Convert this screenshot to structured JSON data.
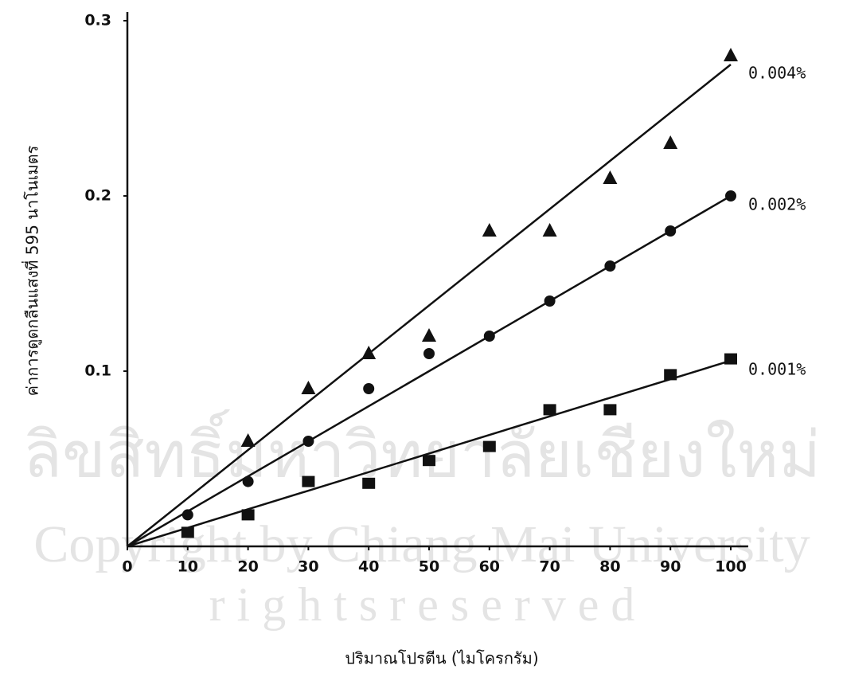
{
  "chart_data": {
    "type": "scatter",
    "x_label": "ปริมาณโปรตีน (ไมโครกรัม)",
    "y_label": "ค่าการดูดกลืนแสงที่ 595 นาโนเมตร",
    "watermark": [
      "ลิขสิทธิ์มหาวิทยาลัยเชียงใหม่",
      "Copyright by Chiang Mai University",
      "r i g h t s   r e s e r v e d"
    ],
    "xlim": [
      0,
      100
    ],
    "ylim": [
      0,
      0.3
    ],
    "xticks": [
      0,
      10,
      20,
      30,
      40,
      50,
      60,
      70,
      80,
      90,
      100
    ],
    "yticks": [
      0.1,
      0.2,
      0.3
    ],
    "x": [
      10,
      20,
      30,
      40,
      50,
      60,
      70,
      80,
      90,
      100
    ],
    "series": [
      {
        "name": "0.004%",
        "color": "#111111",
        "marker": "triangle",
        "values": [
          null,
          0.06,
          0.09,
          0.11,
          0.12,
          0.18,
          0.18,
          0.21,
          0.23,
          0.28
        ],
        "fit_x": [
          0,
          100
        ],
        "fit_y": [
          0,
          0.275
        ]
      },
      {
        "name": "0.002%",
        "color": "#111111",
        "marker": "circle",
        "values": [
          0.018,
          0.037,
          0.06,
          0.09,
          0.11,
          0.12,
          0.14,
          0.16,
          0.18,
          0.2
        ],
        "fit_x": [
          0,
          100
        ],
        "fit_y": [
          0,
          0.2
        ]
      },
      {
        "name": "0.001%",
        "color": "#111111",
        "marker": "square",
        "values": [
          0.008,
          0.018,
          0.037,
          0.036,
          0.049,
          0.057,
          0.078,
          0.078,
          0.098,
          0.107
        ],
        "fit_x": [
          0,
          100
        ],
        "fit_y": [
          0,
          0.106
        ]
      }
    ]
  }
}
